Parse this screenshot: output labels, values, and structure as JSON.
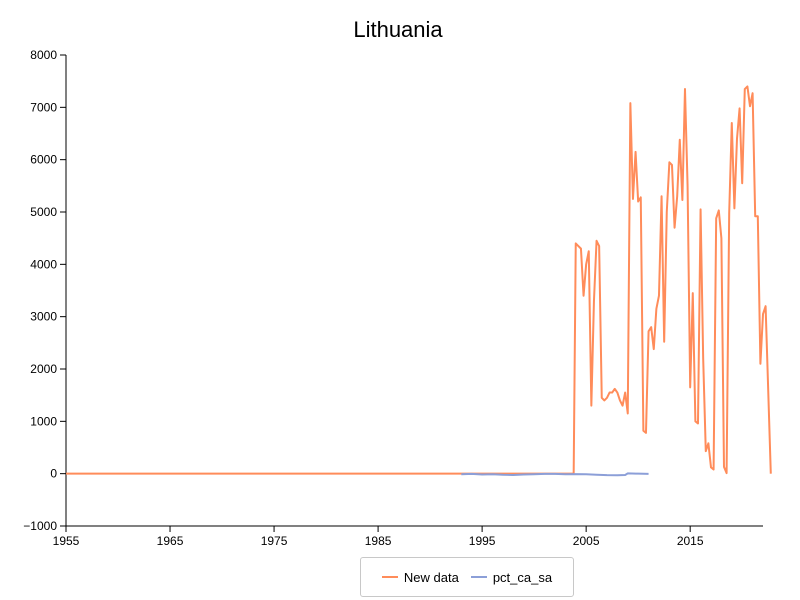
{
  "chart_data": {
    "type": "line",
    "title": "Lithuania",
    "xlabel": "",
    "ylabel": "",
    "xlim": [
      1955,
      2022
    ],
    "ylim": [
      -1000,
      8000
    ],
    "x_ticks": [
      1955,
      1965,
      1975,
      1985,
      1995,
      2005,
      2015
    ],
    "y_ticks": [
      -1000,
      0,
      1000,
      2000,
      3000,
      4000,
      5000,
      6000,
      7000,
      8000
    ],
    "legend_position": "bottom-center",
    "series": [
      {
        "name": "New data",
        "color": "#ff8c5a",
        "points": [
          [
            1955,
            0
          ],
          [
            2003.8,
            0
          ],
          [
            2004.0,
            4400
          ],
          [
            2004.25,
            4350
          ],
          [
            2004.5,
            4300
          ],
          [
            2004.75,
            3400
          ],
          [
            2005.0,
            4000
          ],
          [
            2005.25,
            4250
          ],
          [
            2005.5,
            1300
          ],
          [
            2005.75,
            3300
          ],
          [
            2006.0,
            4450
          ],
          [
            2006.25,
            4350
          ],
          [
            2006.5,
            1450
          ],
          [
            2006.75,
            1400
          ],
          [
            2007.0,
            1450
          ],
          [
            2007.25,
            1550
          ],
          [
            2007.5,
            1550
          ],
          [
            2007.75,
            1620
          ],
          [
            2008.0,
            1550
          ],
          [
            2008.25,
            1400
          ],
          [
            2008.5,
            1300
          ],
          [
            2008.75,
            1550
          ],
          [
            2009.0,
            1150
          ],
          [
            2009.25,
            7080
          ],
          [
            2009.5,
            5250
          ],
          [
            2009.75,
            6150
          ],
          [
            2010.0,
            5200
          ],
          [
            2010.25,
            5280
          ],
          [
            2010.5,
            820
          ],
          [
            2010.75,
            780
          ],
          [
            2011.0,
            2720
          ],
          [
            2011.25,
            2800
          ],
          [
            2011.5,
            2380
          ],
          [
            2011.75,
            3150
          ],
          [
            2012.0,
            3400
          ],
          [
            2012.25,
            5300
          ],
          [
            2012.5,
            2520
          ],
          [
            2012.75,
            5000
          ],
          [
            2013.0,
            5950
          ],
          [
            2013.25,
            5900
          ],
          [
            2013.5,
            4700
          ],
          [
            2013.75,
            5300
          ],
          [
            2014.0,
            6380
          ],
          [
            2014.25,
            5230
          ],
          [
            2014.5,
            7350
          ],
          [
            2014.75,
            5500
          ],
          [
            2015.0,
            1650
          ],
          [
            2015.25,
            3450
          ],
          [
            2015.5,
            1000
          ],
          [
            2015.75,
            960
          ],
          [
            2016.0,
            5050
          ],
          [
            2016.25,
            2200
          ],
          [
            2016.5,
            430
          ],
          [
            2016.75,
            580
          ],
          [
            2017.0,
            120
          ],
          [
            2017.25,
            80
          ],
          [
            2017.5,
            4880
          ],
          [
            2017.75,
            5030
          ],
          [
            2018.0,
            4500
          ],
          [
            2018.25,
            130
          ],
          [
            2018.5,
            10
          ],
          [
            2018.75,
            4980
          ],
          [
            2019.0,
            6700
          ],
          [
            2019.25,
            5070
          ],
          [
            2019.5,
            6400
          ],
          [
            2019.75,
            6980
          ],
          [
            2020.0,
            5550
          ],
          [
            2020.25,
            7350
          ],
          [
            2020.5,
            7400
          ],
          [
            2020.75,
            7020
          ],
          [
            2021.0,
            7270
          ],
          [
            2021.25,
            4920
          ],
          [
            2021.5,
            4920
          ],
          [
            2021.75,
            2100
          ],
          [
            2022.0,
            3050
          ],
          [
            2022.25,
            3200
          ],
          [
            2022.75,
            0
          ]
        ]
      },
      {
        "name": "pct_ca_sa",
        "color": "#8c9fd8",
        "points": [
          [
            1993,
            -10
          ],
          [
            1994,
            -5
          ],
          [
            1995,
            -15
          ],
          [
            1996,
            -10
          ],
          [
            1997,
            -20
          ],
          [
            1998,
            -25
          ],
          [
            1999,
            -15
          ],
          [
            2000,
            -10
          ],
          [
            2001,
            -5
          ],
          [
            2002,
            -5
          ],
          [
            2003,
            -10
          ],
          [
            2004,
            -8
          ],
          [
            2005,
            -12
          ],
          [
            2006,
            -20
          ],
          [
            2007,
            -28
          ],
          [
            2008,
            -30
          ],
          [
            2008.75,
            -25
          ],
          [
            2009,
            5
          ],
          [
            2010,
            0
          ],
          [
            2011,
            -5
          ]
        ]
      }
    ]
  }
}
